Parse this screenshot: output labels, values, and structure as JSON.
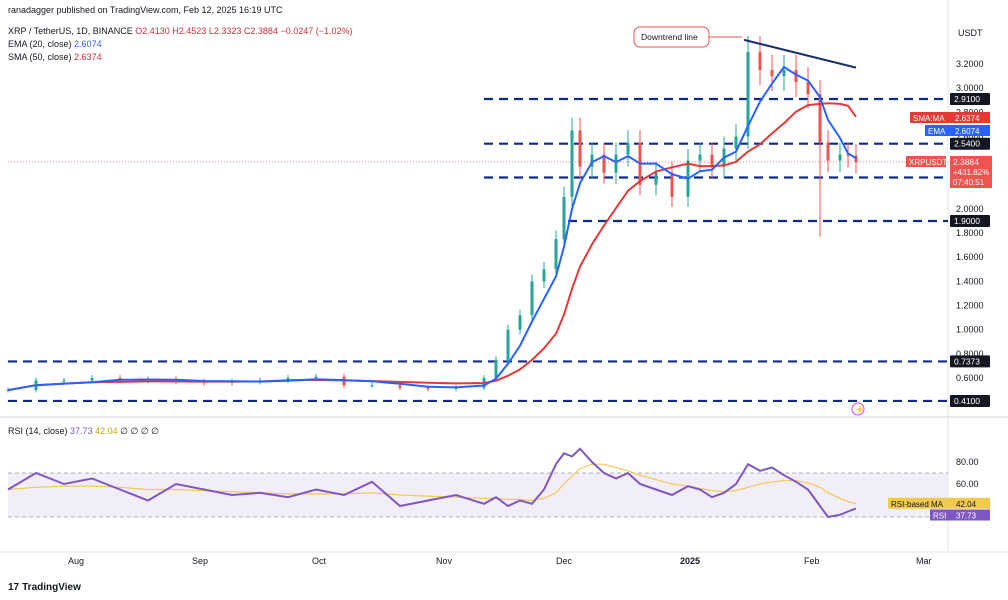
{
  "header": {
    "publisher": "ranadagger published on TradingView.com, Feb 12, 2025 16:19 UTC",
    "symbol": "XRP / TetherUS, 1D, BINANCE",
    "ohlc": {
      "o": "O2.4130",
      "h": "H2.4523",
      "l": "L2.3323",
      "c": "C2.3884",
      "chg": "−0.0247 (−1.02%)"
    },
    "ema_label": "EMA (20, close)",
    "ema_value": "2.6074",
    "sma_label": "SMA (50, close)",
    "sma_value": "2.6374",
    "rsi_label": "RSI (14, close)",
    "rsi_value1": "37.73",
    "rsi_value2": "42.04",
    "rsi_extra": "∅ ∅ ∅ ∅",
    "currency": "USDT"
  },
  "brand": {
    "logo": "17",
    "name": "TradingView"
  },
  "colors": {
    "candle_up": "#26a69a",
    "candle_down": "#ef5350",
    "ema": "#2962ff",
    "sma": "#e53935",
    "level": "#0d2b8c",
    "trend": "#1c2d6e",
    "rsi": "#7e57c2",
    "rsi_ma": "#f2c94c",
    "annot": "#ef5350"
  },
  "chart_data": {
    "type": "candlestick",
    "y_axis_ticks": [
      "3.2000",
      "3.0000",
      "2.8000",
      "2.6000",
      "2.4000",
      "2.2000",
      "2.0000",
      "1.8000",
      "1.6000",
      "1.4000",
      "1.2000",
      "1.0000",
      "0.8000",
      "0.6000"
    ],
    "x_axis_ticks": [
      {
        "label": "Aug",
        "date": "2024-08-01"
      },
      {
        "label": "Sep",
        "date": "2024-09-01"
      },
      {
        "label": "Oct",
        "date": "2024-10-01"
      },
      {
        "label": "Nov",
        "date": "2024-11-01"
      },
      {
        "label": "Dec",
        "date": "2024-12-01"
      },
      {
        "label": "2025",
        "date": "2025-01-01"
      },
      {
        "label": "Feb",
        "date": "2025-02-01"
      },
      {
        "label": "Mar",
        "date": "2025-03-01"
      }
    ],
    "levels": [
      {
        "value": 2.91,
        "label": "2.9100"
      },
      {
        "value": 2.54,
        "label": "2.5400"
      },
      {
        "value": 2.26,
        "label": "2.2600"
      },
      {
        "value": 1.9,
        "label": "1.9000"
      },
      {
        "value": 0.7373,
        "label": "0.7373"
      },
      {
        "value": 0.41,
        "label": "0.4100"
      }
    ],
    "price_labels": [
      {
        "name": "SMA:MA",
        "value": "2.6374"
      },
      {
        "name": "EMA",
        "value": "2.6074"
      },
      {
        "name": "XRPUSDT",
        "value": "2.3884",
        "change": "+431.82%",
        "timer": "07:40:51"
      }
    ],
    "annotation": {
      "text": "Downtrend line",
      "trend_from": {
        "date": "2025-01-15",
        "value": 3.4
      },
      "trend_to": {
        "date": "2025-02-12",
        "value": 3.17
      }
    },
    "price_series": [
      {
        "date": "2024-07-15",
        "close": 0.5
      },
      {
        "date": "2024-07-22",
        "close": 0.58
      },
      {
        "date": "2024-07-29",
        "close": 0.58
      },
      {
        "date": "2024-08-05",
        "close": 0.6
      },
      {
        "date": "2024-08-12",
        "close": 0.58
      },
      {
        "date": "2024-08-19",
        "close": 0.59
      },
      {
        "date": "2024-08-26",
        "close": 0.57
      },
      {
        "date": "2024-09-02",
        "close": 0.56
      },
      {
        "date": "2024-09-09",
        "close": 0.57
      },
      {
        "date": "2024-09-16",
        "close": 0.58
      },
      {
        "date": "2024-09-23",
        "close": 0.6
      },
      {
        "date": "2024-09-30",
        "close": 0.61
      },
      {
        "date": "2024-10-07",
        "close": 0.54
      },
      {
        "date": "2024-10-14",
        "close": 0.54
      },
      {
        "date": "2024-10-21",
        "close": 0.52
      },
      {
        "date": "2024-10-28",
        "close": 0.51
      },
      {
        "date": "2024-11-04",
        "close": 0.52
      },
      {
        "date": "2024-11-11",
        "close": 0.6
      },
      {
        "date": "2024-11-14",
        "close": 0.75
      },
      {
        "date": "2024-11-17",
        "close": 1.0
      },
      {
        "date": "2024-11-20",
        "close": 1.12
      },
      {
        "date": "2024-11-23",
        "close": 1.4
      },
      {
        "date": "2024-11-26",
        "close": 1.5
      },
      {
        "date": "2024-11-29",
        "close": 1.75
      },
      {
        "date": "2024-12-01",
        "close": 2.1
      },
      {
        "date": "2024-12-03",
        "close": 2.65
      },
      {
        "date": "2024-12-05",
        "close": 2.35
      },
      {
        "date": "2024-12-08",
        "close": 2.45
      },
      {
        "date": "2024-12-11",
        "close": 2.3
      },
      {
        "date": "2024-12-14",
        "close": 2.45
      },
      {
        "date": "2024-12-17",
        "close": 2.55
      },
      {
        "date": "2024-12-20",
        "close": 2.2
      },
      {
        "date": "2024-12-24",
        "close": 2.3
      },
      {
        "date": "2024-12-28",
        "close": 2.1
      },
      {
        "date": "2025-01-01",
        "close": 2.4
      },
      {
        "date": "2025-01-04",
        "close": 2.45
      },
      {
        "date": "2025-01-07",
        "close": 2.35
      },
      {
        "date": "2025-01-10",
        "close": 2.5
      },
      {
        "date": "2025-01-13",
        "close": 2.6
      },
      {
        "date": "2025-01-16",
        "close": 3.3
      },
      {
        "date": "2025-01-19",
        "close": 3.15
      },
      {
        "date": "2025-01-22",
        "close": 3.1
      },
      {
        "date": "2025-01-25",
        "close": 3.15
      },
      {
        "date": "2025-01-28",
        "close": 3.05
      },
      {
        "date": "2025-01-31",
        "close": 2.95
      },
      {
        "date": "2025-02-03",
        "close": 2.55
      },
      {
        "date": "2025-02-05",
        "close": 2.4
      },
      {
        "date": "2025-02-08",
        "close": 2.45
      },
      {
        "date": "2025-02-10",
        "close": 2.44
      },
      {
        "date": "2025-02-12",
        "close": 2.3884
      }
    ],
    "rsi": {
      "ylim": [
        0,
        100
      ],
      "ticks": [
        "80.00",
        "60.00"
      ],
      "bands": [
        70,
        30
      ],
      "labels": [
        {
          "name": "RSI-based MA",
          "value": "42.04"
        },
        {
          "name": "RSI",
          "value": "37.73"
        }
      ],
      "series": [
        55,
        70,
        60,
        65,
        55,
        45,
        60,
        55,
        50,
        52,
        48,
        55,
        50,
        62,
        40,
        45,
        50,
        42,
        48,
        40,
        45,
        42,
        55,
        78,
        88,
        85,
        92,
        80,
        70,
        65,
        70,
        60,
        55,
        50,
        58,
        55,
        48,
        52,
        60,
        78,
        72,
        75,
        68,
        62,
        55,
        40,
        30,
        32,
        35,
        37.73
      ],
      "ma_series": [
        55,
        57,
        58,
        58,
        57,
        55,
        55,
        54,
        53,
        52,
        51,
        51,
        51,
        52,
        50,
        49,
        48,
        47,
        47,
        46,
        46,
        45,
        47,
        52,
        60,
        67,
        74,
        78,
        78,
        75,
        72,
        68,
        64,
        60,
        58,
        56,
        54,
        53,
        54,
        57,
        60,
        62,
        63,
        63,
        61,
        57,
        52,
        47,
        44,
        42.04
      ]
    }
  }
}
